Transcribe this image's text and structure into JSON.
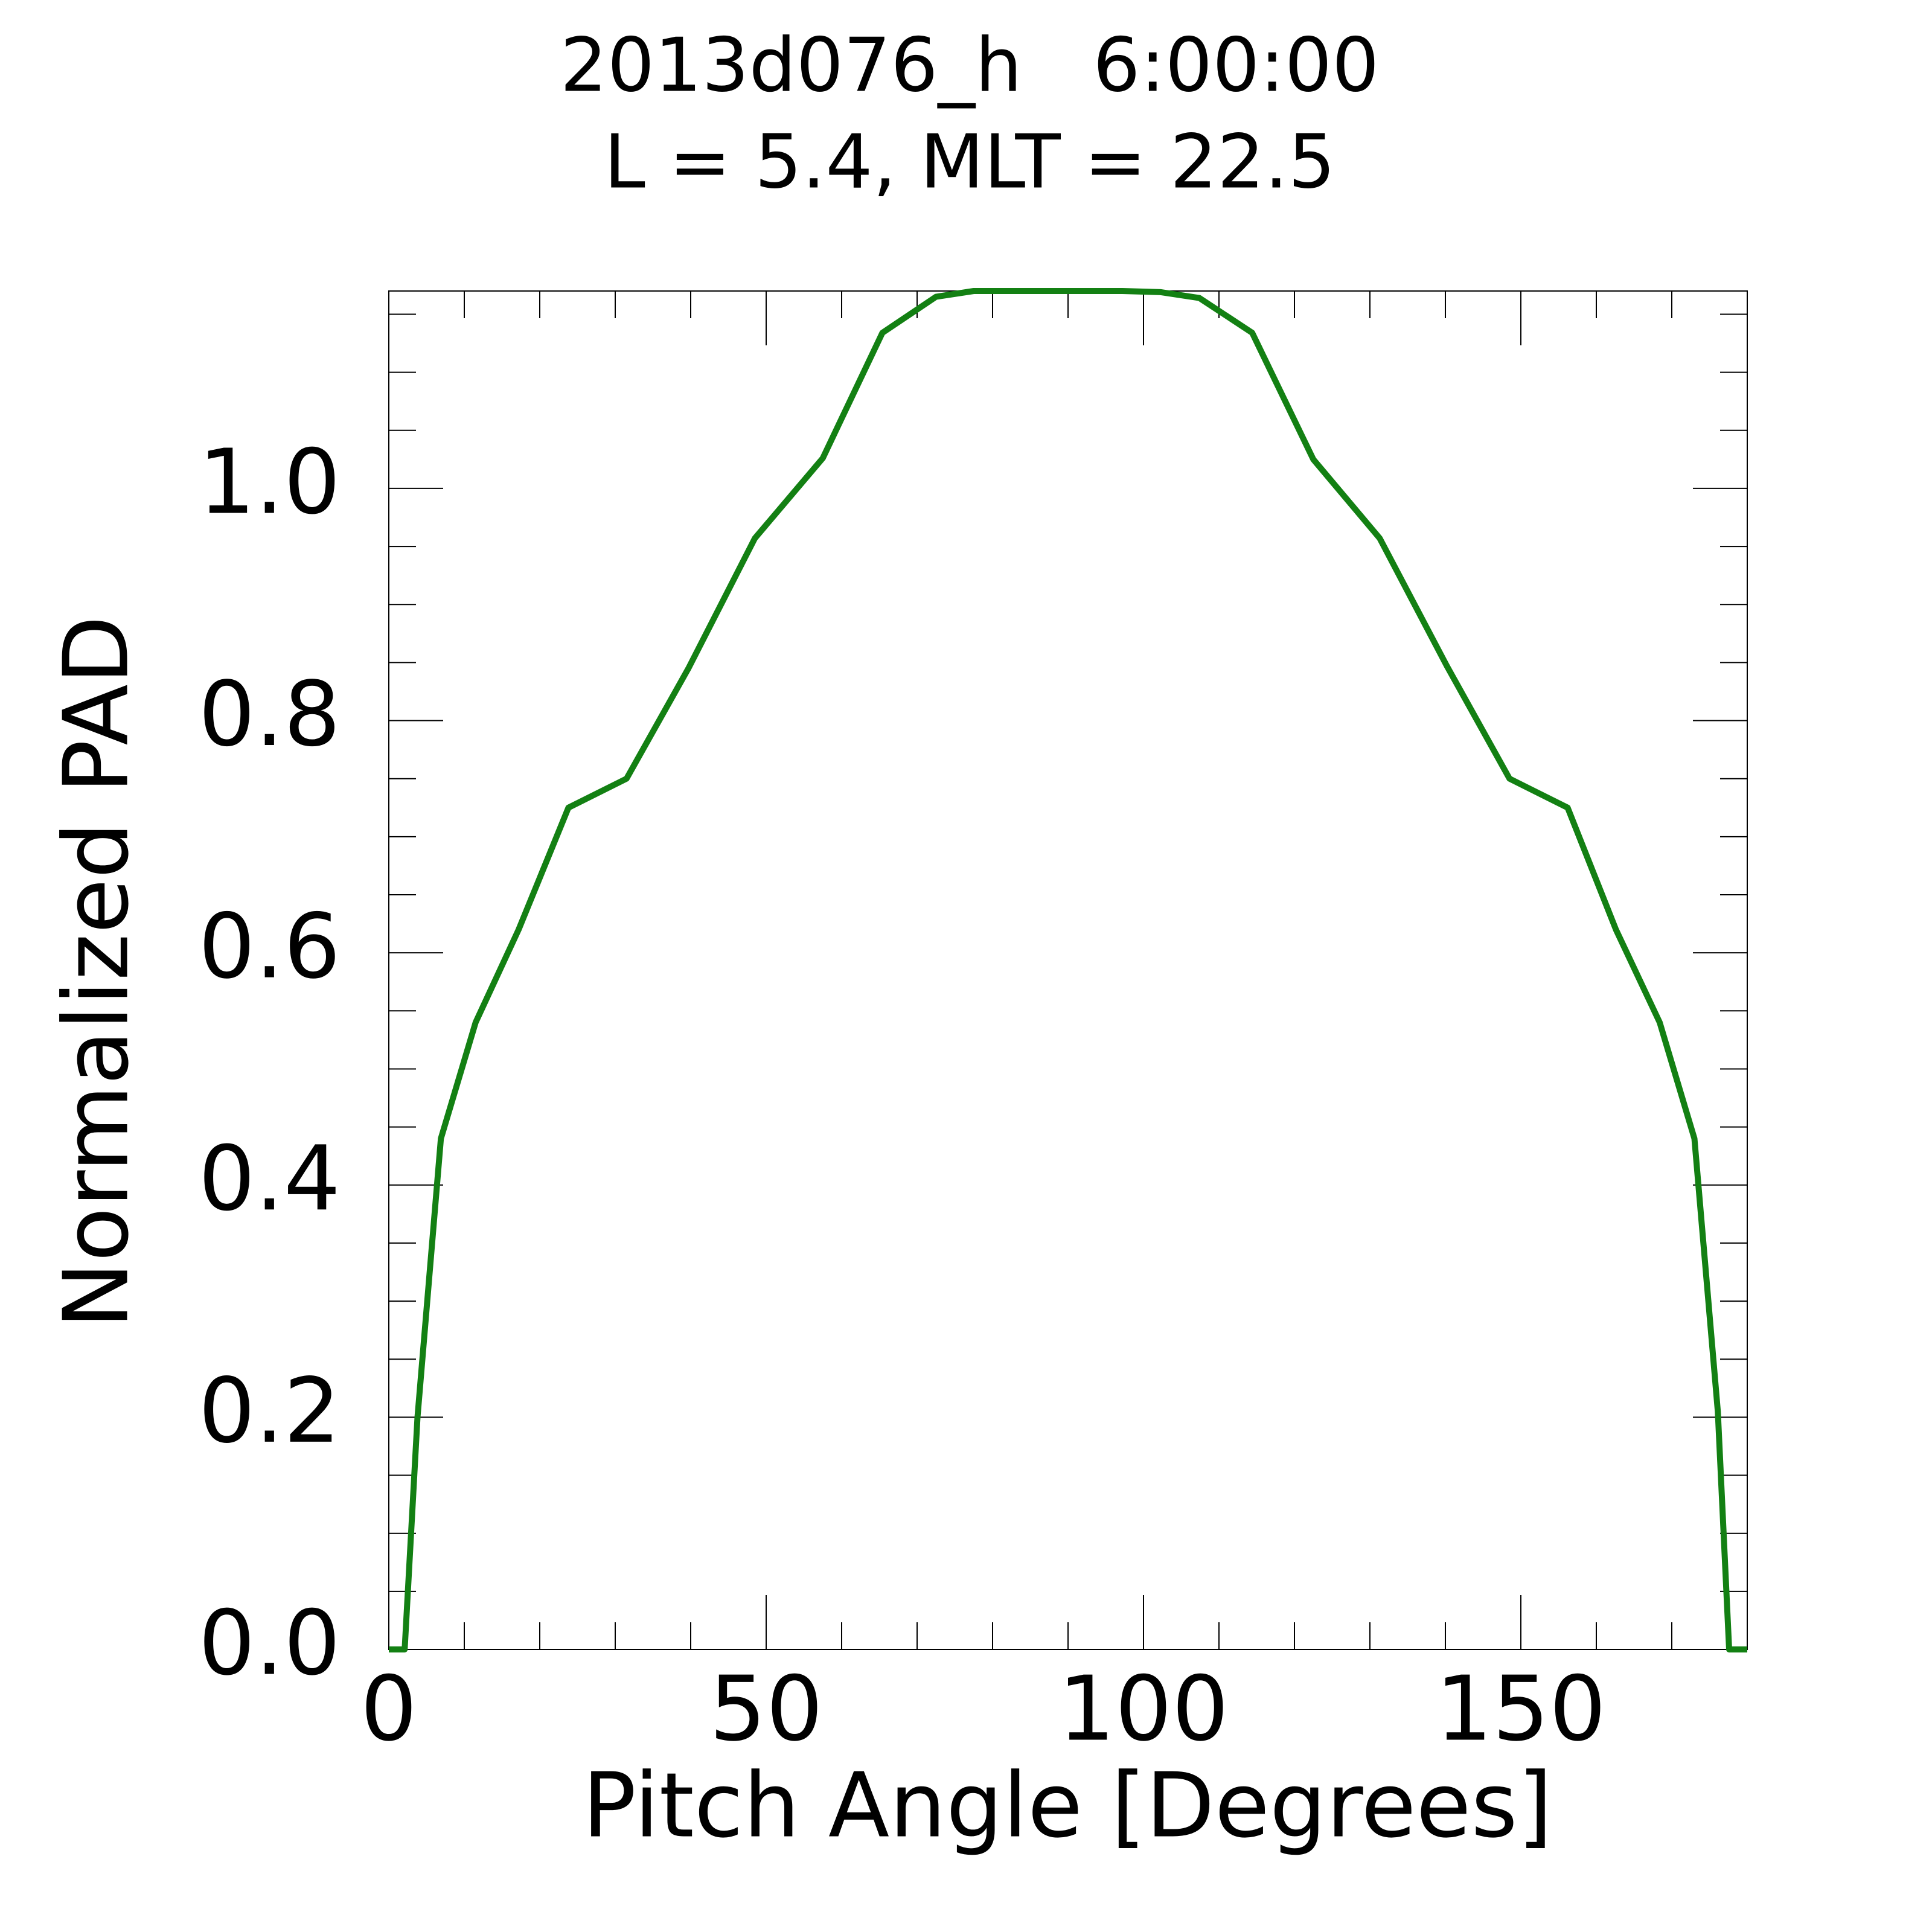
{
  "chart_data": {
    "type": "line",
    "title": "2013d076_h   6:00:00",
    "subtitle": "L = 5.4, MLT = 22.5",
    "x_label": "Pitch Angle [Degrees]",
    "y_label": "Normalized PAD",
    "x": [
      0,
      2.1,
      3.8,
      6.9,
      11.5,
      17.2,
      23.8,
      31.5,
      39.7,
      48.5,
      57.5,
      65.4,
      72.5,
      77.5,
      88.4,
      97.2,
      102.3,
      107.4,
      114.4,
      122.5,
      131.3,
      140.2,
      148.5,
      156.2,
      162.6,
      168.4,
      173.0,
      176.1,
      177.6,
      180
    ],
    "series": [
      {
        "name": "PAD",
        "color": "#138013",
        "values": [
          0,
          0,
          0.2,
          0.44,
          0.54,
          0.62,
          0.725,
          0.75,
          0.845,
          0.957,
          1.026,
          1.134,
          1.165,
          1.17,
          1.17,
          1.17,
          1.169,
          1.164,
          1.134,
          1.025,
          0.957,
          0.847,
          0.75,
          0.725,
          0.62,
          0.54,
          0.44,
          0.205,
          0,
          0
        ]
      }
    ],
    "xlim": [
      0,
      180
    ],
    "ylim": [
      0,
      1.17
    ],
    "xticks": [
      0,
      50,
      100,
      150
    ],
    "yticks": [
      {
        "value": 0,
        "label": "0.0"
      },
      {
        "value": 0.2,
        "label": "0.2"
      },
      {
        "value": 0.4,
        "label": "0.4"
      },
      {
        "value": 0.6,
        "label": "0.6"
      },
      {
        "value": 0.8,
        "label": "0.8"
      },
      {
        "value": 1.0,
        "label": "1.0"
      }
    ],
    "grid": false
  }
}
